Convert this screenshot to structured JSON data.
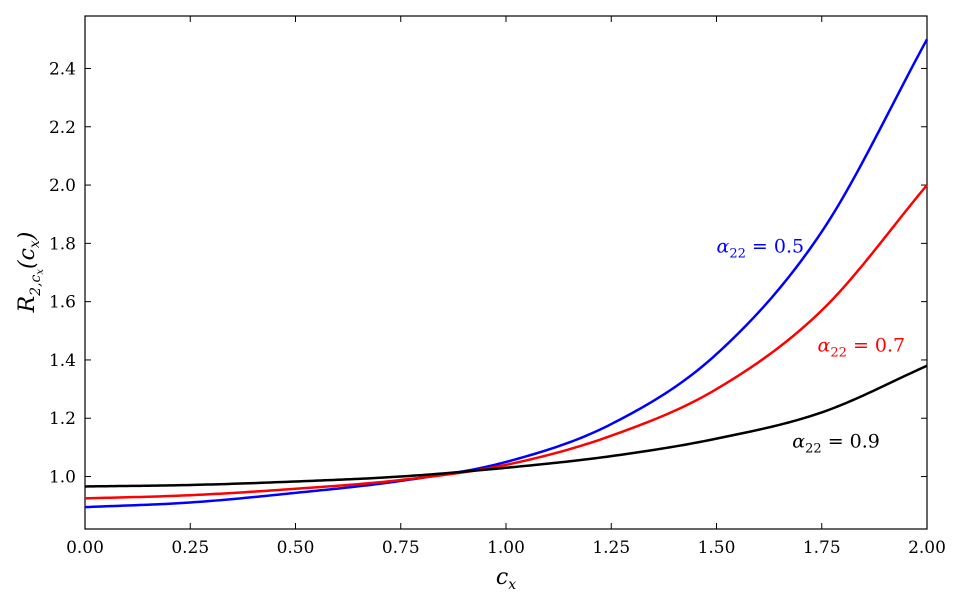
{
  "chart_data": {
    "type": "line",
    "xlabel": "c_x",
    "ylabel": "R_{2,c_x}(c_x)",
    "xlim": [
      0,
      2
    ],
    "ylim": [
      0.82,
      2.58
    ],
    "xticks": [
      0,
      0.25,
      0.5,
      0.75,
      1.0,
      1.25,
      1.5,
      1.75,
      2.0
    ],
    "xtick_labels": [
      "0.00",
      "0.25",
      "0.50",
      "0.75",
      "1.00",
      "1.25",
      "1.50",
      "1.75",
      "2.00"
    ],
    "yticks": [
      1.0,
      1.2,
      1.4,
      1.6,
      1.8,
      2.0,
      2.2,
      2.4
    ],
    "ytick_labels": [
      "1.0",
      "1.2",
      "1.4",
      "1.6",
      "1.8",
      "2.0",
      "2.2",
      "2.4"
    ],
    "grid": false,
    "x": [
      0.0,
      0.25,
      0.5,
      0.75,
      1.0,
      1.25,
      1.5,
      1.75,
      2.0
    ],
    "series": [
      {
        "name": "α22 = 0.5",
        "color": "#0000ff",
        "values": [
          0.895,
          0.911,
          0.944,
          0.985,
          1.05,
          1.18,
          1.42,
          1.84,
          2.5
        ],
        "annotation": {
          "symbol": "α",
          "sub": "22",
          "rest": " = 0.5",
          "at": [
            1.5,
            1.79
          ]
        }
      },
      {
        "name": "α22 = 0.7",
        "color": "#ff0000",
        "values": [
          0.925,
          0.936,
          0.958,
          0.988,
          1.04,
          1.14,
          1.3,
          1.57,
          2.0
        ],
        "annotation": {
          "symbol": "α",
          "sub": "22",
          "rest": " = 0.7",
          "at": [
            1.74,
            1.45
          ]
        }
      },
      {
        "name": "α22 = 0.9",
        "color": "#000000",
        "values": [
          0.966,
          0.971,
          0.983,
          1.0,
          1.03,
          1.07,
          1.13,
          1.22,
          1.38
        ],
        "annotation": {
          "symbol": "α",
          "sub": "22",
          "rest": " = 0.9",
          "at": [
            1.68,
            1.12
          ]
        }
      }
    ]
  }
}
